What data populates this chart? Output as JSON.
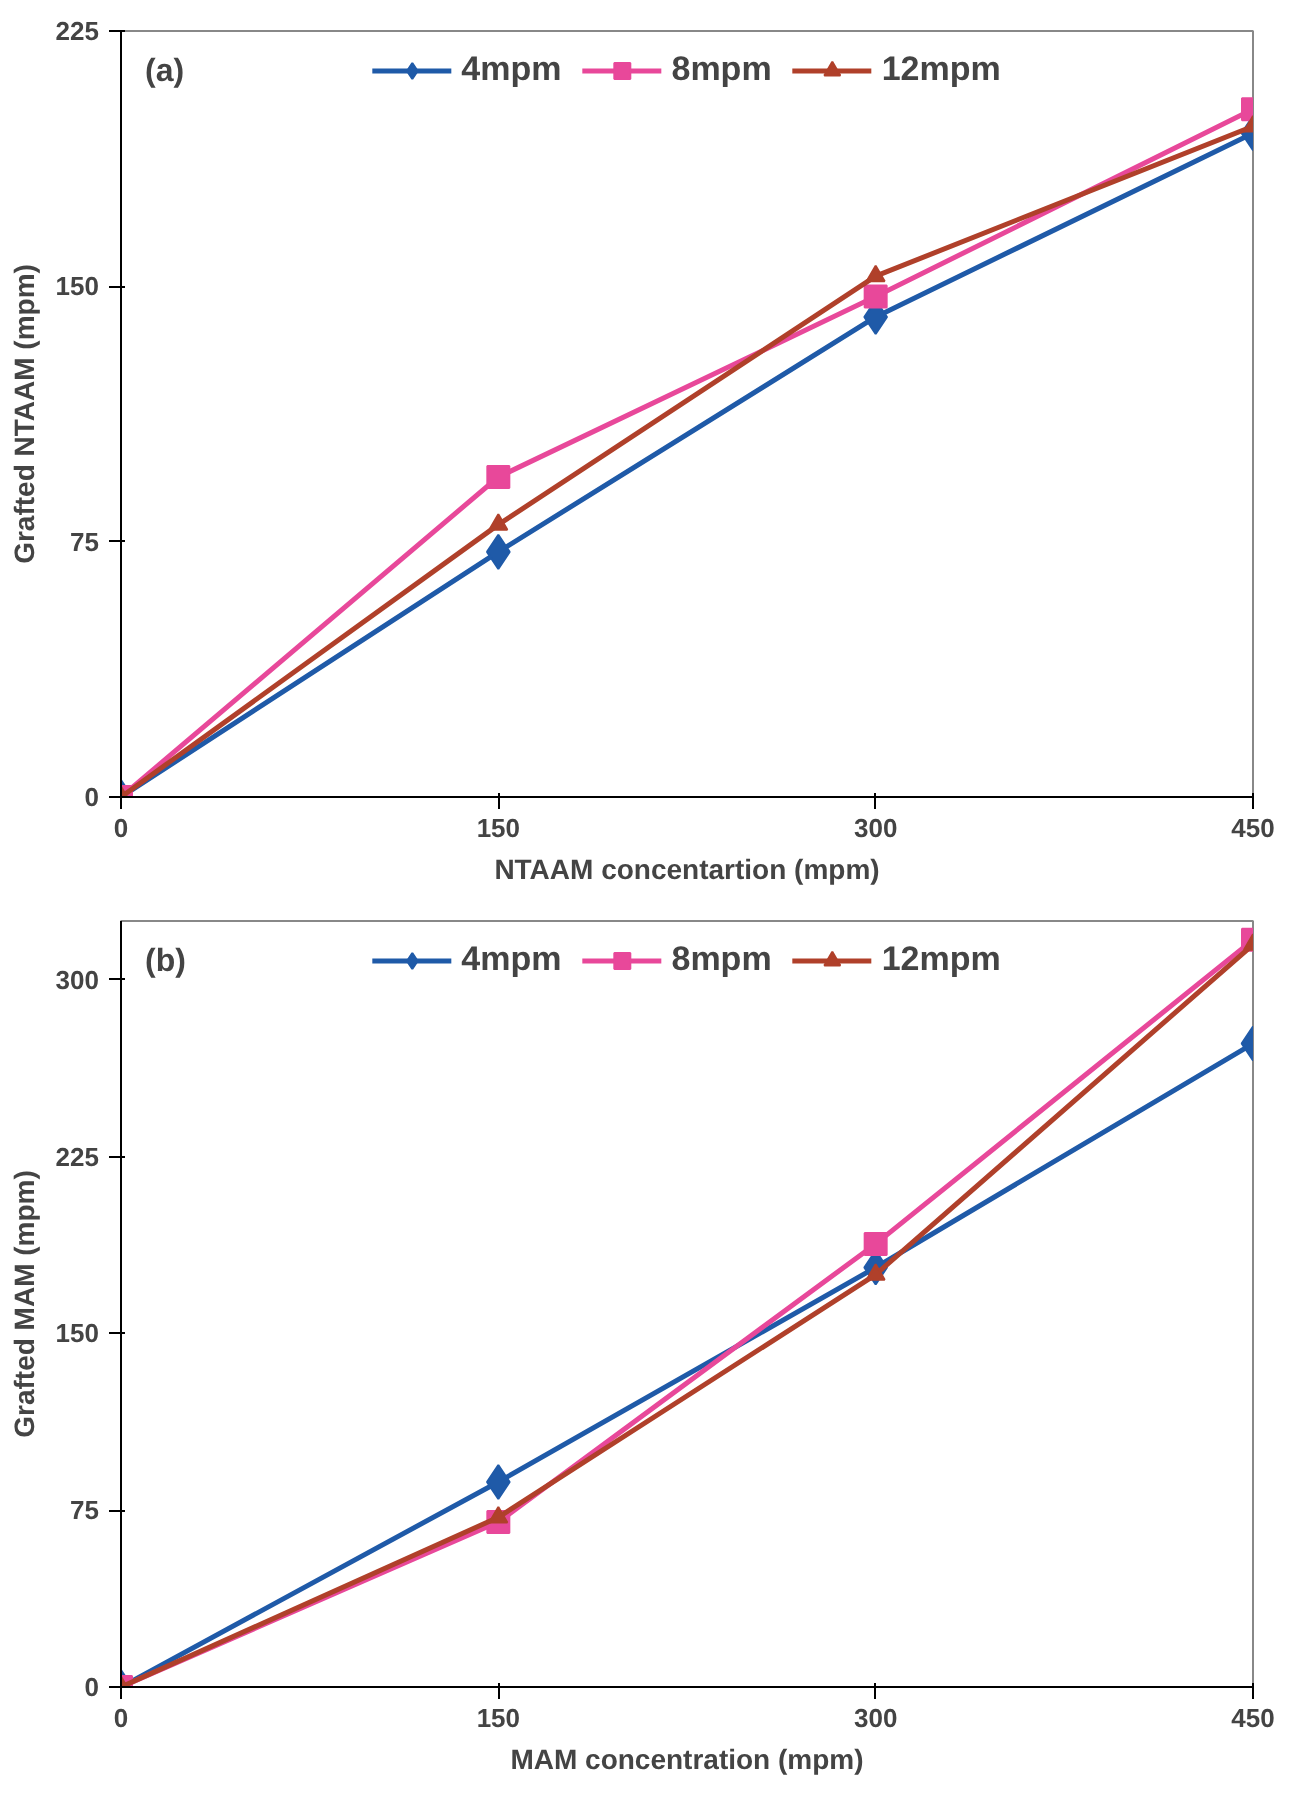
{
  "chart_data": [
    {
      "type": "line",
      "annotations": [
        "(a)"
      ],
      "xlabel": "NTAAM concentartion (mpm)",
      "ylabel": "Grafted NTAAM (mpm)",
      "x": [
        0,
        150,
        300,
        450
      ],
      "xlim": [
        0,
        450
      ],
      "xticks": [
        0,
        150,
        300,
        450
      ],
      "ylim": [
        0,
        225
      ],
      "yticks": [
        0,
        75,
        150,
        225
      ],
      "grid": false,
      "legend": "top",
      "series": [
        {
          "name": "4mpm",
          "color": "#1f5aa8",
          "marker": "diamond",
          "values": [
            0,
            72,
            141,
            195
          ]
        },
        {
          "name": "8mpm",
          "color": "#e8489a",
          "marker": "square",
          "values": [
            0,
            94,
            147,
            202
          ]
        },
        {
          "name": "12mpm",
          "color": "#b0402a",
          "marker": "triangle",
          "values": [
            0,
            80,
            153,
            197
          ]
        }
      ]
    },
    {
      "type": "line",
      "annotations": [
        "(b)"
      ],
      "xlabel": "MAM concentration (mpm)",
      "ylabel": "Grafted MAM (mpm)",
      "x": [
        0,
        150,
        300,
        450
      ],
      "xlim": [
        0,
        450
      ],
      "xticks": [
        0,
        150,
        300,
        450
      ],
      "ylim": [
        0,
        325
      ],
      "yticks": [
        0,
        75,
        150,
        225,
        300
      ],
      "grid": false,
      "legend": "top",
      "series": [
        {
          "name": "4mpm",
          "color": "#1f5aa8",
          "marker": "diamond",
          "values": [
            0,
            87,
            178,
            273
          ]
        },
        {
          "name": "8mpm",
          "color": "#e8489a",
          "marker": "square",
          "values": [
            0,
            70,
            188,
            317
          ]
        },
        {
          "name": "12mpm",
          "color": "#b0402a",
          "marker": "triangle",
          "values": [
            0,
            72,
            175,
            315
          ]
        }
      ]
    }
  ]
}
